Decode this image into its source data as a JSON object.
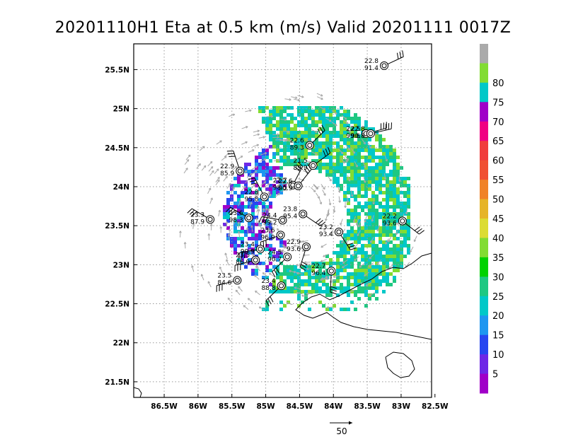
{
  "chart_data": {
    "type": "scatter",
    "title": "20201110H1 Eta at 0.5 km (m/s) Valid 20201111  0017Z",
    "xlabel": "",
    "ylabel": "",
    "xlim": [
      -86.95,
      -82.55
    ],
    "ylim": [
      21.3,
      25.83
    ],
    "grid": true,
    "x_ticks": [
      -86.5,
      -86,
      -85.5,
      -85,
      -84.5,
      -84,
      -83.5,
      -83,
      -82.5
    ],
    "x_tick_labels": [
      "86.5W",
      "86W",
      "85.5W",
      "85W",
      "84.5W",
      "84W",
      "83.5W",
      "83W",
      "82.5W"
    ],
    "y_ticks": [
      21.5,
      22,
      22.5,
      23,
      23.5,
      24,
      24.5,
      25,
      25.5
    ],
    "y_tick_labels": [
      "21.5N",
      "22N",
      "22.5N",
      "23N",
      "23.5N",
      "24N",
      "24.5N",
      "25N",
      "25.5N"
    ],
    "colorbar": {
      "labels": [
        "5",
        "10",
        "15",
        "20",
        "25",
        "30",
        "35",
        "40",
        "45",
        "50",
        "55",
        "60",
        "65",
        "70",
        "75",
        "80"
      ],
      "colors": [
        "#a000c8",
        "#6e28e6",
        "#2846f0",
        "#1e96f0",
        "#00c8c8",
        "#1ec882",
        "#00d200",
        "#82dc32",
        "#dcdc32",
        "#e6b428",
        "#f08228",
        "#f05032",
        "#f03c3c",
        "#f00082",
        "#a000c8",
        "#00c8c8",
        "#82dc32",
        "#aaaaaa"
      ]
    },
    "reference_vector": "50",
    "observations": [
      {
        "lon": -83.25,
        "lat": 25.55,
        "v1": "22.8",
        "v2": "91.4"
      },
      {
        "lon": -84.35,
        "lat": 24.53,
        "v1": "22.6",
        "v2": "89.3"
      },
      {
        "lon": -83.52,
        "lat": 24.68,
        "v1": "22.5",
        "v2": "99.6"
      },
      {
        "lon": -83.45,
        "lat": 24.68,
        "v1": "22.8",
        "v2": "90.8"
      },
      {
        "lon": -84.3,
        "lat": 24.27,
        "v1": "21.5",
        "v2": "89.9"
      },
      {
        "lon": -85.38,
        "lat": 24.2,
        "v1": "22.9",
        "v2": "85.9"
      },
      {
        "lon": -84.6,
        "lat": 24.02,
        "v1": "22.7",
        "v2": "98.5"
      },
      {
        "lon": -84.52,
        "lat": 24.01,
        "v1": "22.6",
        "v2": "90.9"
      },
      {
        "lon": -85.02,
        "lat": 23.87,
        "v1": "22.8",
        "v2": "95.8"
      },
      {
        "lon": -85.82,
        "lat": 23.58,
        "v1": "23.3",
        "v2": "87.9"
      },
      {
        "lon": -85.25,
        "lat": 23.6,
        "v1": "23.6",
        "v2": "98.3"
      },
      {
        "lon": -84.75,
        "lat": 23.57,
        "v1": "24.4",
        "v2": "99.2"
      },
      {
        "lon": -84.45,
        "lat": 23.65,
        "v1": "23.8",
        "v2": "95.4"
      },
      {
        "lon": -84.78,
        "lat": 23.38,
        "v1": "23.6",
        "v2": "96.9"
      },
      {
        "lon": -83.92,
        "lat": 23.42,
        "v1": "23.2",
        "v2": "93.4"
      },
      {
        "lon": -85.08,
        "lat": 23.2,
        "v1": "23.4",
        "v2": "99.9"
      },
      {
        "lon": -84.4,
        "lat": 23.23,
        "v1": "22.9",
        "v2": "93.6"
      },
      {
        "lon": -84.68,
        "lat": 23.1,
        "v1": "24.5",
        "v2": "90.7"
      },
      {
        "lon": -85.15,
        "lat": 23.06,
        "v1": "23.5",
        "v2": "86.9"
      },
      {
        "lon": -85.42,
        "lat": 22.8,
        "v1": "23.5",
        "v2": "84.6"
      },
      {
        "lon": -84.77,
        "lat": 22.73,
        "v1": "23.4",
        "v2": "88.8"
      },
      {
        "lon": -84.03,
        "lat": 22.92,
        "v1": "22.7",
        "v2": "96.4"
      },
      {
        "lon": -82.98,
        "lat": 23.56,
        "v1": "22.2",
        "v2": "93.6"
      }
    ]
  }
}
